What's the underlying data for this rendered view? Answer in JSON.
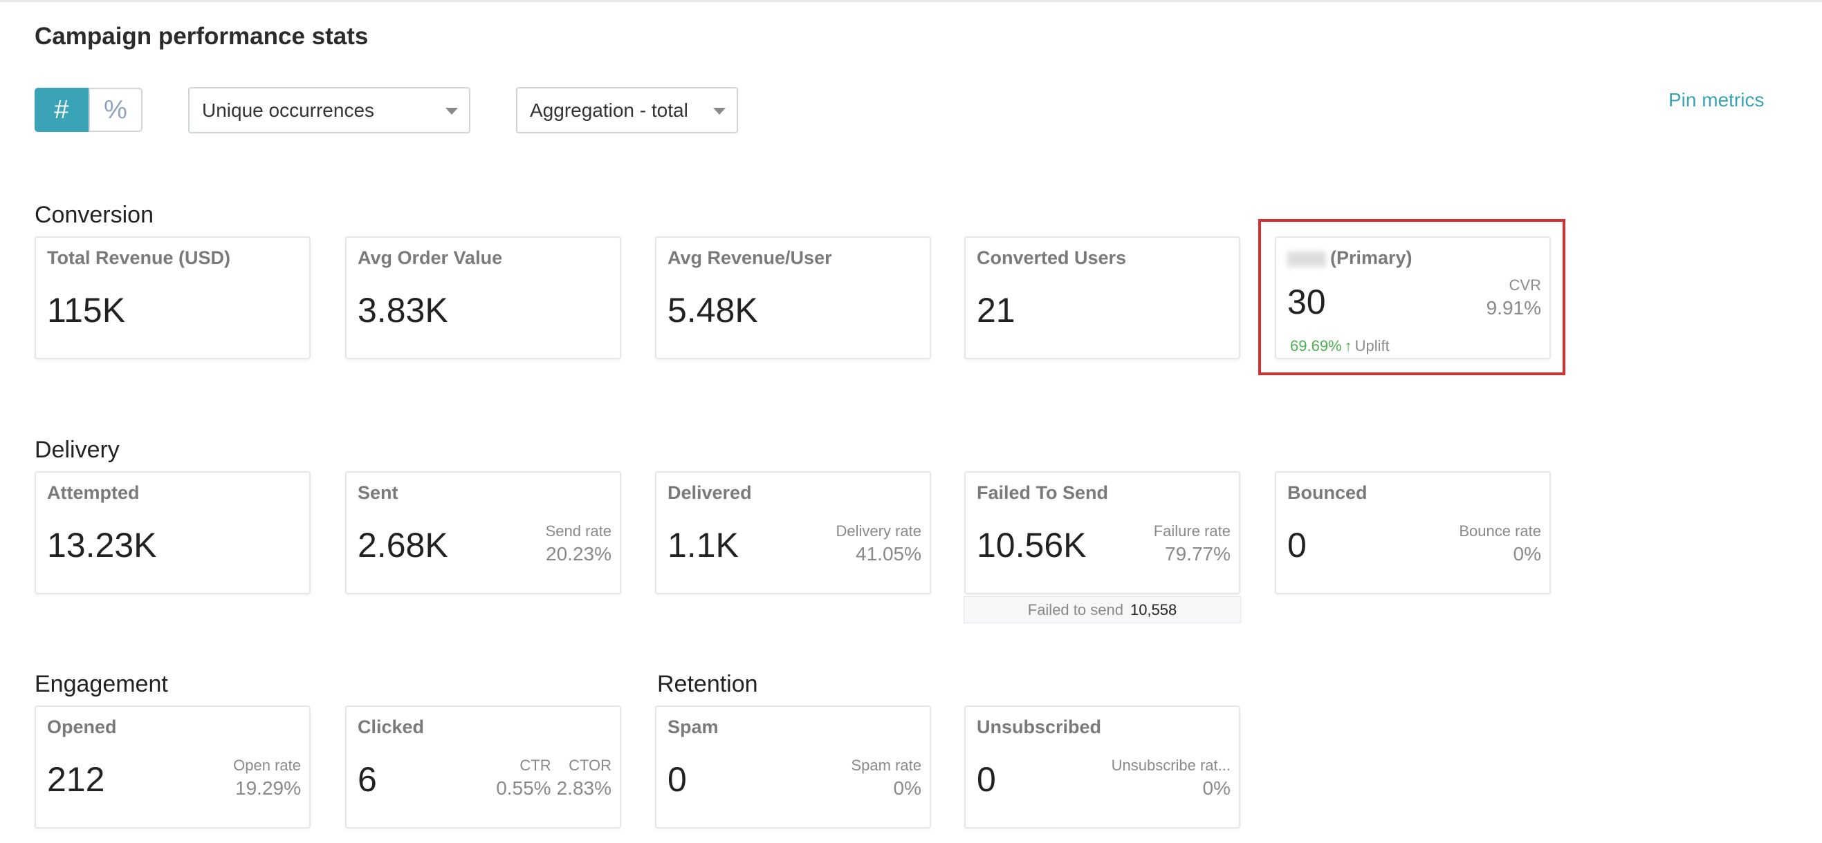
{
  "header": {
    "title": "Campaign performance stats",
    "toggle": [
      "#",
      "%"
    ],
    "dropdowns": [
      "Unique occurrences",
      "Aggregation - total"
    ],
    "pin": "Pin metrics"
  },
  "sections": [
    {
      "title": "Conversion",
      "cards": [
        {
          "title": "Total Revenue (USD)",
          "value": "115K",
          "metrics": []
        },
        {
          "title": "Avg Order Value",
          "value": "3.83K",
          "metrics": []
        },
        {
          "title": "Avg Revenue/User",
          "value": "5.48K",
          "metrics": []
        },
        {
          "title": "Converted Users",
          "value": "21",
          "metrics": []
        },
        {
          "title": "(Primary)",
          "value": "30",
          "metrics": [
            {
              "label": "CVR",
              "value": "9.91%"
            }
          ],
          "uplift": {
            "value": "69.69%",
            "label": "Uplift"
          }
        }
      ]
    },
    {
      "title": "Delivery",
      "cards": [
        {
          "title": "Attempted",
          "value": "13.23K",
          "metrics": []
        },
        {
          "title": "Sent",
          "value": "2.68K",
          "metrics": [
            {
              "label": "Send rate",
              "value": "20.23%"
            }
          ]
        },
        {
          "title": "Delivered",
          "value": "1.1K",
          "metrics": [
            {
              "label": "Delivery rate",
              "value": "41.05%"
            }
          ]
        },
        {
          "title": "Failed To Send",
          "value": "10.56K",
          "metrics": [
            {
              "label": "Failure rate",
              "value": "79.77%"
            }
          ],
          "tooltip": {
            "label": "Failed to send",
            "value": "10,558"
          }
        },
        {
          "title": "Bounced",
          "value": "0",
          "metrics": [
            {
              "label": "Bounce rate",
              "value": "0%"
            }
          ]
        }
      ]
    },
    {
      "title": "Engagement",
      "cards": [
        {
          "title": "Opened",
          "value": "212",
          "metrics": [
            {
              "label": "Open rate",
              "value": "19.29%"
            }
          ]
        },
        {
          "title": "Clicked",
          "value": "6",
          "metrics": [
            {
              "label": "CTR",
              "value": "0.55%"
            },
            {
              "label": "CTOR",
              "value": "2.83%"
            }
          ]
        }
      ]
    },
    {
      "title": "Retention",
      "cards": [
        {
          "title": "Spam",
          "value": "0",
          "metrics": [
            {
              "label": "Spam rate",
              "value": "0%"
            }
          ]
        },
        {
          "title": "Unsubscribed",
          "value": "0",
          "metrics": [
            {
              "label": "Unsubscribe rat...",
              "value": "0%"
            }
          ]
        }
      ]
    }
  ]
}
